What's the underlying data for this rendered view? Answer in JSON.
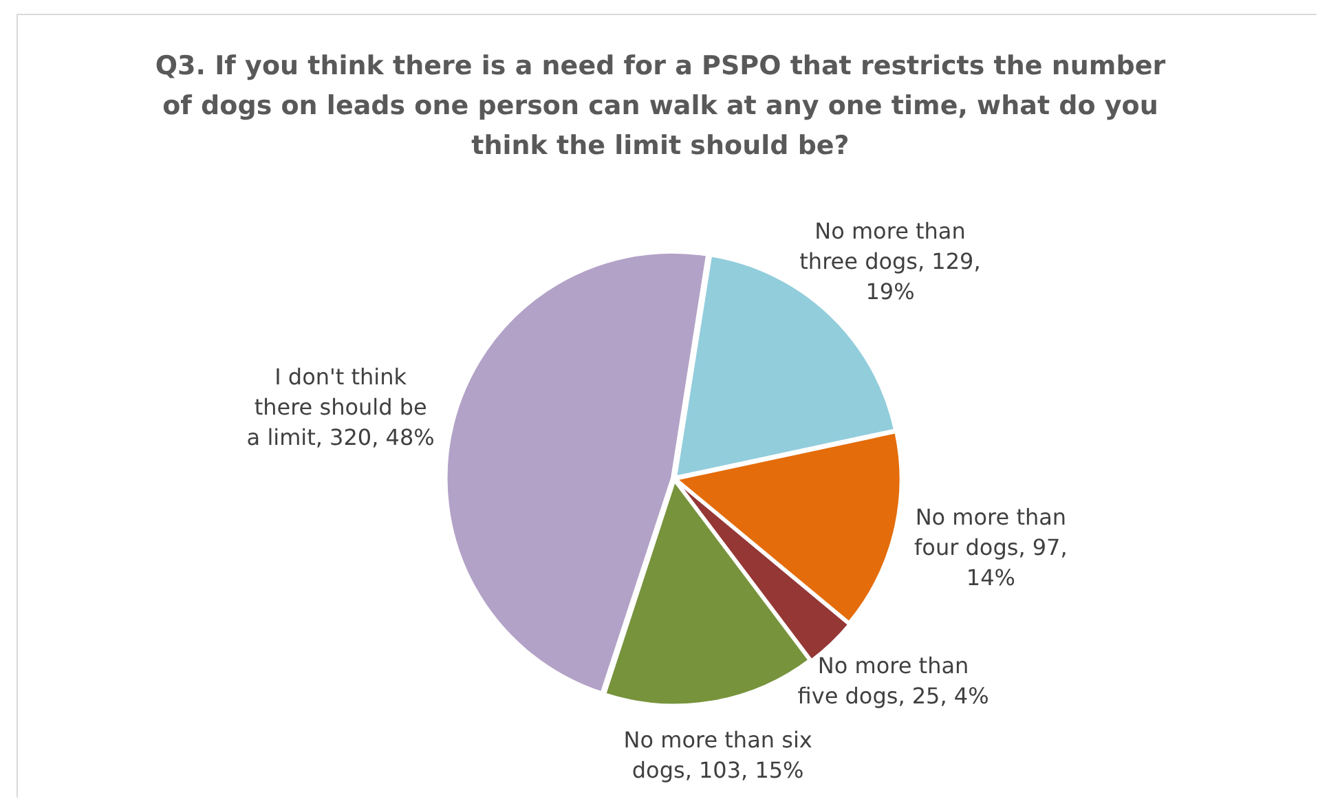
{
  "chart_data": {
    "type": "pie",
    "title": "Q3. If you think there is a need for a PSPO that restricts the number of dogs on leads one person can walk at any one time, what do you think the limit should be?",
    "categories": [
      "No more than three dogs",
      "No more than four dogs",
      "No more than five dogs",
      "No more than six dogs",
      "I don't think there should be a limit"
    ],
    "values": [
      129,
      97,
      25,
      103,
      320
    ],
    "value_labels": [
      "129, 19%",
      "97, 14%",
      "25, 4%",
      "103, 15%",
      "320, 48%"
    ],
    "colors": [
      "#92cddc",
      "#e46c0a",
      "#953735",
      "#77933c",
      "#b3a2c7"
    ],
    "legend": false
  }
}
